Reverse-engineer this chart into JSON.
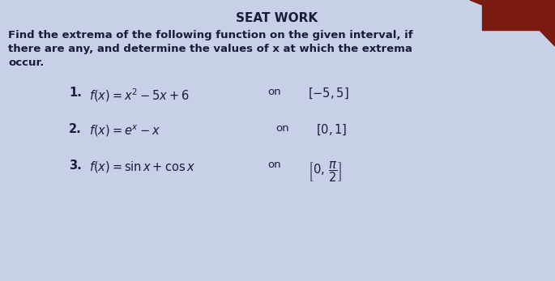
{
  "title": "SEAT WORK",
  "description_line1": "Find the extrema of the following function on the given interval, if",
  "description_line2": "there are any, and determine the values of x at which the extrema",
  "description_line3": "occur.",
  "item1_num": "1.",
  "item1_formula": "$f(x) = x^2 - 5x + 6$",
  "item1_on": "on",
  "item1_interval": "$[-5, 5]$",
  "item2_num": "2.",
  "item2_formula": "$f(x) = e^x - x$",
  "item2_on": "on",
  "item2_interval": "$[0, 1]$",
  "item3_num": "3.",
  "item3_formula": "$f(x) = \\sin x + \\cos x$",
  "item3_on": "on",
  "item3_interval": "$\\left[0,\\, \\dfrac{\\pi}{2}\\right]$",
  "bg_color": "#c8d0e8",
  "text_color": "#1a1a3a",
  "red_color": "#7a1a10",
  "title_fontsize": 11,
  "body_fontsize": 9.5,
  "item_fontsize": 10.5
}
